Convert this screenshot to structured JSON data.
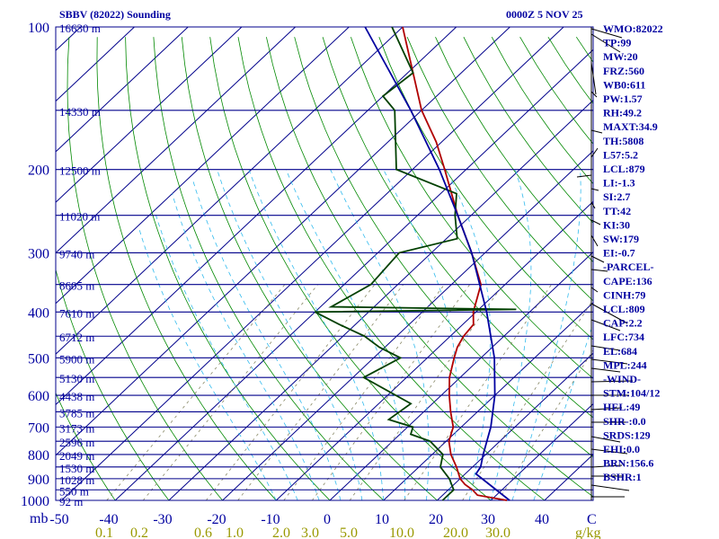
{
  "chart_data": {
    "type": "line",
    "title": "SBBV (82022) Sounding",
    "valid_time": "0000Z 5 NOV 25",
    "pressure_ticks": [
      "100",
      "200",
      "300",
      "400",
      "500",
      "600",
      "700",
      "800",
      "900",
      "1000"
    ],
    "axis_unit_left": "mb",
    "temperature_ticks": [
      "-50",
      "-40",
      "-30",
      "-20",
      "-10",
      "0",
      "10",
      "20",
      "30",
      "40"
    ],
    "axis_unit_right_temp": "C",
    "mixing_ratio_ticks": [
      "0.1",
      "0.2",
      "0.6",
      "1.0",
      "2.0",
      "3.0",
      "5.0",
      "10.0",
      "20.0",
      "30.0"
    ],
    "mixing_ratio_unit": "g/kg",
    "height_labels": [
      {
        "p": 100,
        "text": "16630 m"
      },
      {
        "p": 150,
        "text": "14330 m"
      },
      {
        "p": 200,
        "text": "12500 m"
      },
      {
        "p": 250,
        "text": "11020 m"
      },
      {
        "p": 300,
        "text": "9740 m"
      },
      {
        "p": 350,
        "text": "8605 m"
      },
      {
        "p": 400,
        "text": "7610 m"
      },
      {
        "p": 450,
        "text": "6712 m"
      },
      {
        "p": 500,
        "text": "5900 m"
      },
      {
        "p": 550,
        "text": "5130 m"
      },
      {
        "p": 600,
        "text": "4438 m"
      },
      {
        "p": 650,
        "text": "3785 m"
      },
      {
        "p": 700,
        "text": "3173 m"
      },
      {
        "p": 750,
        "text": "2596 m"
      },
      {
        "p": 800,
        "text": "2049 m"
      },
      {
        "p": 850,
        "text": "1530 m"
      },
      {
        "p": 900,
        "text": "1028 m"
      },
      {
        "p": 950,
        "text": "550 m"
      },
      {
        "p": 1000,
        "text": "92 m"
      }
    ],
    "series": [
      {
        "name": "Temperature",
        "color": "#b00000",
        "points": [
          {
            "p": 1000,
            "t": 33.0
          },
          {
            "p": 975,
            "t": 26.5
          },
          {
            "p": 950,
            "t": 24.5
          },
          {
            "p": 925,
            "t": 22.0
          },
          {
            "p": 900,
            "t": 20.0
          },
          {
            "p": 850,
            "t": 17.0
          },
          {
            "p": 800,
            "t": 13.5
          },
          {
            "p": 750,
            "t": 10.5
          },
          {
            "p": 700,
            "t": 8.5
          },
          {
            "p": 650,
            "t": 5.0
          },
          {
            "p": 600,
            "t": 1.5
          },
          {
            "p": 550,
            "t": -2.0
          },
          {
            "p": 500,
            "t": -5.0
          },
          {
            "p": 475,
            "t": -6.5
          },
          {
            "p": 450,
            "t": -7.5
          },
          {
            "p": 425,
            "t": -8.0
          },
          {
            "p": 400,
            "t": -10.5
          },
          {
            "p": 350,
            "t": -14.5
          },
          {
            "p": 300,
            "t": -22.5
          },
          {
            "p": 250,
            "t": -32.5
          },
          {
            "p": 200,
            "t": -44.0
          },
          {
            "p": 175,
            "t": -51.0
          },
          {
            "p": 150,
            "t": -60.0
          },
          {
            "p": 125,
            "t": -69.0
          },
          {
            "p": 100,
            "t": -80.0
          }
        ]
      },
      {
        "name": "Dewpoint",
        "color": "#004000",
        "points": [
          {
            "p": 1000,
            "t": 21.0
          },
          {
            "p": 950,
            "t": 21.0
          },
          {
            "p": 900,
            "t": 18.0
          },
          {
            "p": 850,
            "t": 14.0
          },
          {
            "p": 800,
            "t": 12.0
          },
          {
            "p": 750,
            "t": 7.0
          },
          {
            "p": 725,
            "t": 2.0
          },
          {
            "p": 700,
            "t": 1.0
          },
          {
            "p": 675,
            "t": -5.0
          },
          {
            "p": 625,
            "t": -4.0
          },
          {
            "p": 550,
            "t": -18.0
          },
          {
            "p": 500,
            "t": -15.0
          },
          {
            "p": 475,
            "t": -21.0
          },
          {
            "p": 450,
            "t": -26.0
          },
          {
            "p": 425,
            "t": -33.0
          },
          {
            "p": 400,
            "t": -40.0
          },
          {
            "p": 395,
            "t": -3.0
          },
          {
            "p": 390,
            "t": -38.0
          },
          {
            "p": 350,
            "t": -35.0
          },
          {
            "p": 300,
            "t": -36.0
          },
          {
            "p": 280,
            "t": -28.0
          },
          {
            "p": 250,
            "t": -33.0
          },
          {
            "p": 225,
            "t": -37.0
          },
          {
            "p": 200,
            "t": -53.0
          },
          {
            "p": 150,
            "t": -65.0
          },
          {
            "p": 140,
            "t": -70.0
          },
          {
            "p": 125,
            "t": -69.0
          },
          {
            "p": 100,
            "t": -82.0
          }
        ]
      },
      {
        "name": "Parcel",
        "color": "#0000a0",
        "points": [
          {
            "p": 1000,
            "t": 33.5
          },
          {
            "p": 879,
            "t": 22.0
          },
          {
            "p": 850,
            "t": 21.5
          },
          {
            "p": 800,
            "t": 19.5
          },
          {
            "p": 700,
            "t": 15.5
          },
          {
            "p": 600,
            "t": 10.0
          },
          {
            "p": 500,
            "t": 2.5
          },
          {
            "p": 400,
            "t": -8.0
          },
          {
            "p": 300,
            "t": -22.5
          },
          {
            "p": 250,
            "t": -32.5
          },
          {
            "p": 200,
            "t": -45.0
          },
          {
            "p": 150,
            "t": -62.0
          },
          {
            "p": 100,
            "t": -87.0
          }
        ]
      }
    ]
  },
  "indices": [
    "WMO:82022",
    "TP:99",
    "MW:20",
    "FRZ:560",
    "WB0:611",
    "PW:1.57",
    "RH:49.2",
    "MAXT:34.9",
    "TH:5808",
    "L57:5.2",
    "LCL:879",
    "LI:-1.3",
    "SI:2.7",
    "TT:42",
    "KI:30",
    "SW:179",
    "EI:-0.7",
    "-PARCEL-",
    "CAPE:136",
    "CINH:79",
    "LCL:809",
    "CAP:2.2",
    "LFC:734",
    "EL:684",
    "MPL:244",
    "-WIND-",
    "STM:104/12",
    "HEL:49",
    "SHR-:0.0",
    "SRDS:129",
    "EHI:0.0",
    "BRN:156.6",
    "BSHR:1"
  ],
  "colors": {
    "isobar": "#00008b",
    "isotherm": "#00008b",
    "dry_adiabat": "#008800",
    "moist_adiabat": "#33bbee",
    "mixing_ratio": "#888866",
    "axis_text": "#0000a0",
    "mixing_text": "#999900"
  }
}
